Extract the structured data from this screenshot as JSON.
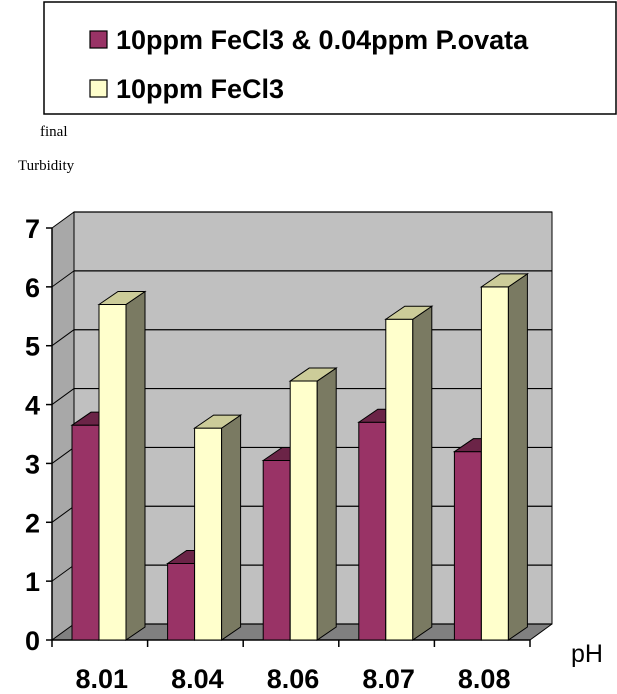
{
  "chart_data": {
    "type": "bar",
    "title": "",
    "xlabel": "pH",
    "ylabel_lines": [
      "final",
      "Turbidity"
    ],
    "categories": [
      "8.01",
      "8.04",
      "8.06",
      "8.07",
      "8.08"
    ],
    "series": [
      {
        "name": "10ppm FeCl3 & 0.04ppm P.ovata",
        "values": [
          3.65,
          1.3,
          3.05,
          3.7,
          3.2
        ],
        "color": "#993366"
      },
      {
        "name": "10ppm FeCl3",
        "values": [
          5.7,
          3.6,
          4.4,
          5.45,
          6.0
        ],
        "color": "#ffffcc"
      }
    ],
    "ylim": [
      0,
      7
    ],
    "yticks": [
      "0",
      "1",
      "2",
      "3",
      "4",
      "5",
      "6",
      "7"
    ],
    "grid": true,
    "legend_position": "top",
    "wall_color": "#c0c0c0",
    "floor_color": "#808080"
  }
}
